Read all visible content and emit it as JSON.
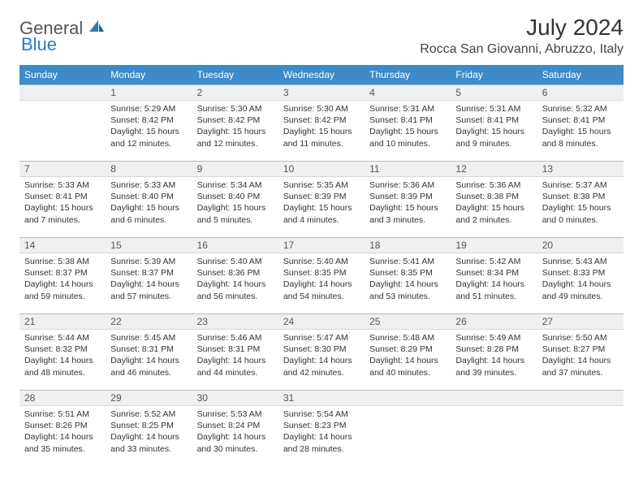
{
  "brand": {
    "part1": "General",
    "part2": "Blue"
  },
  "title": "July 2024",
  "location": "Rocca San Giovanni, Abruzzo, Italy",
  "colors": {
    "header_bg": "#3d8bc9",
    "header_fg": "#ffffff",
    "daynum_bg": "#eef0f1",
    "daynum_border": "#b8bdc0",
    "text": "#333333",
    "brand_gray": "#555555",
    "brand_blue": "#2b7bbf"
  },
  "weekdays": [
    "Sunday",
    "Monday",
    "Tuesday",
    "Wednesday",
    "Thursday",
    "Friday",
    "Saturday"
  ],
  "start_offset": 1,
  "days": [
    {
      "n": "1",
      "sunrise": "5:29 AM",
      "sunset": "8:42 PM",
      "daylight": "15 hours and 12 minutes."
    },
    {
      "n": "2",
      "sunrise": "5:30 AM",
      "sunset": "8:42 PM",
      "daylight": "15 hours and 12 minutes."
    },
    {
      "n": "3",
      "sunrise": "5:30 AM",
      "sunset": "8:42 PM",
      "daylight": "15 hours and 11 minutes."
    },
    {
      "n": "4",
      "sunrise": "5:31 AM",
      "sunset": "8:41 PM",
      "daylight": "15 hours and 10 minutes."
    },
    {
      "n": "5",
      "sunrise": "5:31 AM",
      "sunset": "8:41 PM",
      "daylight": "15 hours and 9 minutes."
    },
    {
      "n": "6",
      "sunrise": "5:32 AM",
      "sunset": "8:41 PM",
      "daylight": "15 hours and 8 minutes."
    },
    {
      "n": "7",
      "sunrise": "5:33 AM",
      "sunset": "8:41 PM",
      "daylight": "15 hours and 7 minutes."
    },
    {
      "n": "8",
      "sunrise": "5:33 AM",
      "sunset": "8:40 PM",
      "daylight": "15 hours and 6 minutes."
    },
    {
      "n": "9",
      "sunrise": "5:34 AM",
      "sunset": "8:40 PM",
      "daylight": "15 hours and 5 minutes."
    },
    {
      "n": "10",
      "sunrise": "5:35 AM",
      "sunset": "8:39 PM",
      "daylight": "15 hours and 4 minutes."
    },
    {
      "n": "11",
      "sunrise": "5:36 AM",
      "sunset": "8:39 PM",
      "daylight": "15 hours and 3 minutes."
    },
    {
      "n": "12",
      "sunrise": "5:36 AM",
      "sunset": "8:38 PM",
      "daylight": "15 hours and 2 minutes."
    },
    {
      "n": "13",
      "sunrise": "5:37 AM",
      "sunset": "8:38 PM",
      "daylight": "15 hours and 0 minutes."
    },
    {
      "n": "14",
      "sunrise": "5:38 AM",
      "sunset": "8:37 PM",
      "daylight": "14 hours and 59 minutes."
    },
    {
      "n": "15",
      "sunrise": "5:39 AM",
      "sunset": "8:37 PM",
      "daylight": "14 hours and 57 minutes."
    },
    {
      "n": "16",
      "sunrise": "5:40 AM",
      "sunset": "8:36 PM",
      "daylight": "14 hours and 56 minutes."
    },
    {
      "n": "17",
      "sunrise": "5:40 AM",
      "sunset": "8:35 PM",
      "daylight": "14 hours and 54 minutes."
    },
    {
      "n": "18",
      "sunrise": "5:41 AM",
      "sunset": "8:35 PM",
      "daylight": "14 hours and 53 minutes."
    },
    {
      "n": "19",
      "sunrise": "5:42 AM",
      "sunset": "8:34 PM",
      "daylight": "14 hours and 51 minutes."
    },
    {
      "n": "20",
      "sunrise": "5:43 AM",
      "sunset": "8:33 PM",
      "daylight": "14 hours and 49 minutes."
    },
    {
      "n": "21",
      "sunrise": "5:44 AM",
      "sunset": "8:32 PM",
      "daylight": "14 hours and 48 minutes."
    },
    {
      "n": "22",
      "sunrise": "5:45 AM",
      "sunset": "8:31 PM",
      "daylight": "14 hours and 46 minutes."
    },
    {
      "n": "23",
      "sunrise": "5:46 AM",
      "sunset": "8:31 PM",
      "daylight": "14 hours and 44 minutes."
    },
    {
      "n": "24",
      "sunrise": "5:47 AM",
      "sunset": "8:30 PM",
      "daylight": "14 hours and 42 minutes."
    },
    {
      "n": "25",
      "sunrise": "5:48 AM",
      "sunset": "8:29 PM",
      "daylight": "14 hours and 40 minutes."
    },
    {
      "n": "26",
      "sunrise": "5:49 AM",
      "sunset": "8:28 PM",
      "daylight": "14 hours and 39 minutes."
    },
    {
      "n": "27",
      "sunrise": "5:50 AM",
      "sunset": "8:27 PM",
      "daylight": "14 hours and 37 minutes."
    },
    {
      "n": "28",
      "sunrise": "5:51 AM",
      "sunset": "8:26 PM",
      "daylight": "14 hours and 35 minutes."
    },
    {
      "n": "29",
      "sunrise": "5:52 AM",
      "sunset": "8:25 PM",
      "daylight": "14 hours and 33 minutes."
    },
    {
      "n": "30",
      "sunrise": "5:53 AM",
      "sunset": "8:24 PM",
      "daylight": "14 hours and 30 minutes."
    },
    {
      "n": "31",
      "sunrise": "5:54 AM",
      "sunset": "8:23 PM",
      "daylight": "14 hours and 28 minutes."
    }
  ],
  "labels": {
    "sunrise": "Sunrise:",
    "sunset": "Sunset:",
    "daylight": "Daylight:"
  }
}
